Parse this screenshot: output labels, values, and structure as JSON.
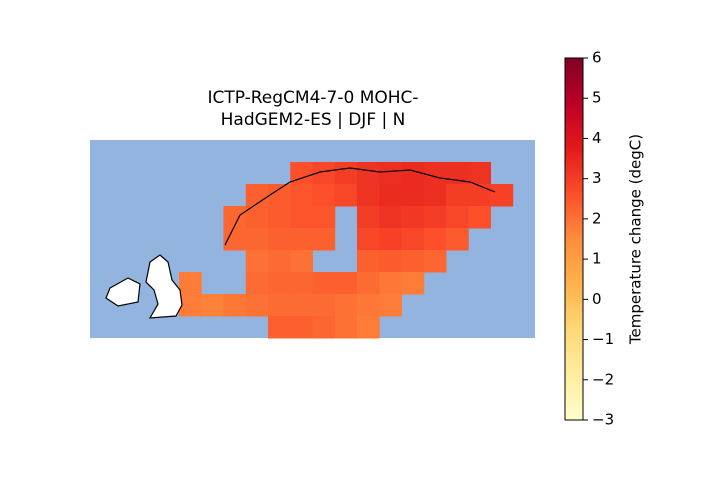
{
  "chart_data": {
    "type": "heatmap",
    "title": [
      "ICTP-RegCM4-7-0 MOHC-",
      "HadGEM2-ES | DJF | N"
    ],
    "colorbar_label": "Temperature change (degC)",
    "colormap": "YlOrRd",
    "clim": [
      -3,
      6
    ],
    "cticks": [
      {
        "value": -3,
        "label": "−3"
      },
      {
        "value": -2,
        "label": "−2"
      },
      {
        "value": -1,
        "label": "−1"
      },
      0,
      1,
      2,
      3,
      4,
      5,
      6
    ],
    "values": [
      [
        null,
        null,
        null,
        null,
        null,
        null,
        null,
        null,
        null,
        null,
        null,
        null,
        null,
        null,
        null,
        null,
        null,
        null,
        null,
        null
      ],
      [
        null,
        null,
        null,
        null,
        null,
        null,
        null,
        null,
        null,
        2.6,
        2.8,
        3.0,
        3.2,
        3.3,
        3.4,
        3.3,
        3.3,
        3.2,
        null,
        null
      ],
      [
        null,
        null,
        null,
        null,
        null,
        null,
        null,
        2.3,
        2.4,
        2.5,
        2.6,
        2.8,
        3.2,
        3.4,
        3.4,
        3.3,
        3.0,
        3.0,
        2.9,
        null
      ],
      [
        null,
        null,
        null,
        null,
        null,
        null,
        2.2,
        2.3,
        2.4,
        2.5,
        2.5,
        null,
        3.0,
        3.2,
        3.1,
        3.0,
        2.8,
        2.6,
        null,
        null
      ],
      [
        null,
        null,
        null,
        null,
        null,
        null,
        2.2,
        2.2,
        2.3,
        2.3,
        2.3,
        null,
        2.8,
        2.9,
        2.8,
        2.6,
        2.4,
        null,
        null,
        null
      ],
      [
        null,
        null,
        null,
        null,
        null,
        null,
        null,
        2.0,
        2.1,
        2.0,
        null,
        null,
        2.3,
        2.4,
        2.3,
        2.2,
        null,
        null,
        null,
        null
      ],
      [
        null,
        null,
        null,
        null,
        1.8,
        null,
        null,
        2.1,
        2.2,
        2.2,
        2.3,
        2.3,
        2.1,
        1.9,
        1.8,
        null,
        null,
        null,
        null,
        null
      ],
      [
        null,
        null,
        null,
        null,
        1.8,
        1.7,
        1.9,
        2.0,
        2.1,
        2.1,
        2.1,
        2.0,
        1.9,
        1.8,
        null,
        null,
        null,
        null,
        null,
        null
      ],
      [
        null,
        null,
        null,
        null,
        null,
        null,
        null,
        null,
        2.3,
        2.3,
        2.2,
        2.0,
        1.8,
        null,
        null,
        null,
        null,
        null,
        null,
        null
      ]
    ]
  }
}
